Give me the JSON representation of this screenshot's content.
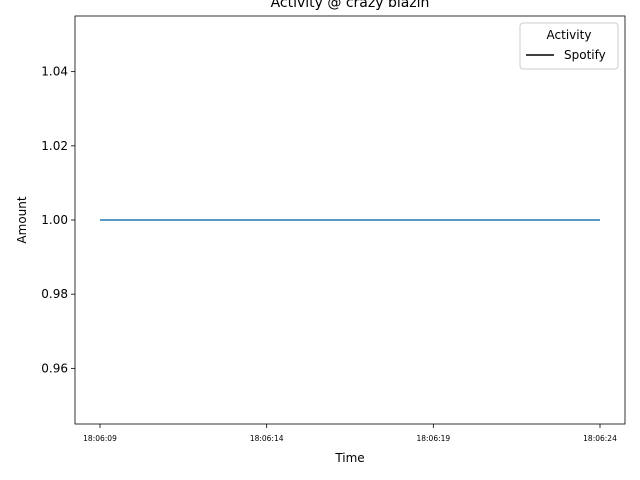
{
  "chart_data": {
    "type": "line",
    "title": "Activity @ crazy blazin",
    "xlabel": "Time",
    "ylabel": "Amount",
    "x_ticks": [
      "18:06:09",
      "18:06:14",
      "18:06:19",
      "18:06:24"
    ],
    "y_ticks": [
      "0.96",
      "0.98",
      "1.00",
      "1.02",
      "1.04"
    ],
    "xlim": [
      "18:06:08.25",
      "18:06:24.75"
    ],
    "ylim": [
      0.945,
      1.055
    ],
    "grid": false,
    "legend": {
      "title": "Activity",
      "position": "top-right",
      "entries": [
        "Spotify"
      ]
    },
    "series": [
      {
        "name": "Spotify",
        "color": "#1f77b4",
        "x": [
          "18:06:09",
          "18:06:24"
        ],
        "y": [
          1.0,
          1.0
        ]
      }
    ],
    "legend_line_color": "#000000"
  }
}
